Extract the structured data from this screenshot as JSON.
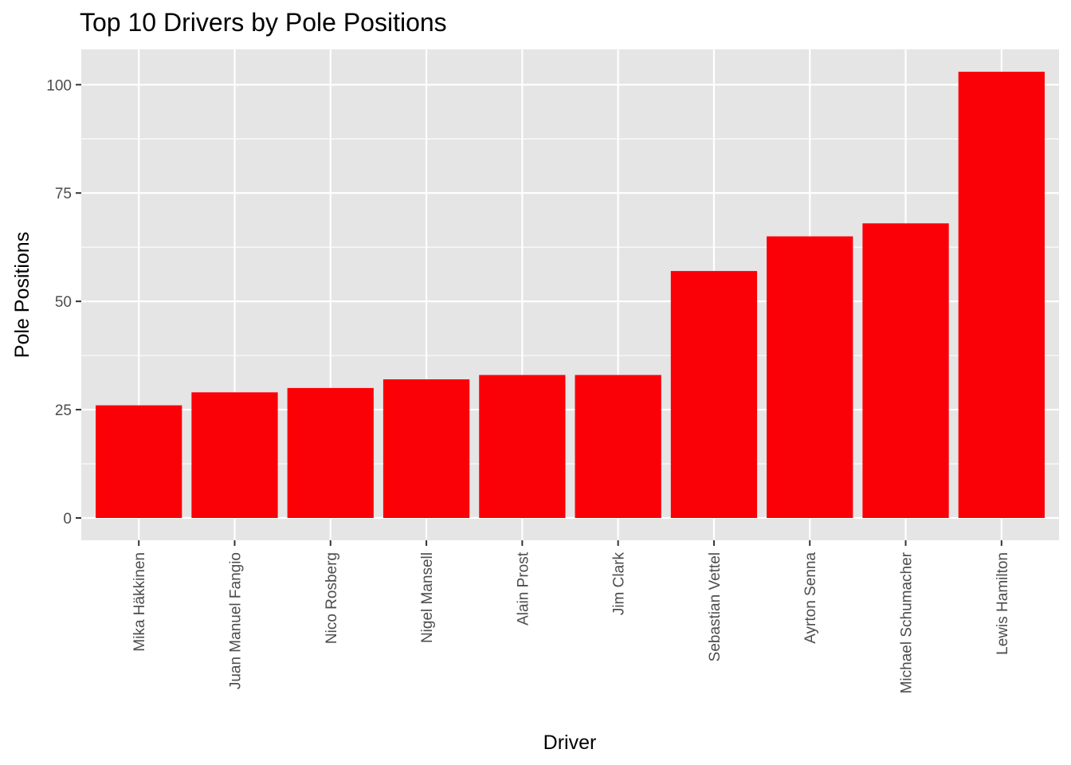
{
  "chart_data": {
    "type": "bar",
    "title": "Top 10 Drivers by Pole Positions",
    "xlabel": "Driver",
    "ylabel": "Pole Positions",
    "categories": [
      "Mika Häkkinen",
      "Juan Manuel Fangio",
      "Nico Rosberg",
      "Nigel Mansell",
      "Alain Prost",
      "Jim Clark",
      "Sebastian Vettel",
      "Ayrton Senna",
      "Michael Schumacher",
      "Lewis Hamilton"
    ],
    "values": [
      26,
      29,
      30,
      32,
      33,
      33,
      57,
      65,
      68,
      103
    ],
    "yticks": [
      0,
      25,
      50,
      75,
      100
    ],
    "ylim": [
      -5.15,
      108.15
    ],
    "grid": true,
    "legend": "none",
    "bar_color": "#fa0007",
    "panel_background": "#e5e5e5",
    "grid_color": "#ffffff"
  }
}
